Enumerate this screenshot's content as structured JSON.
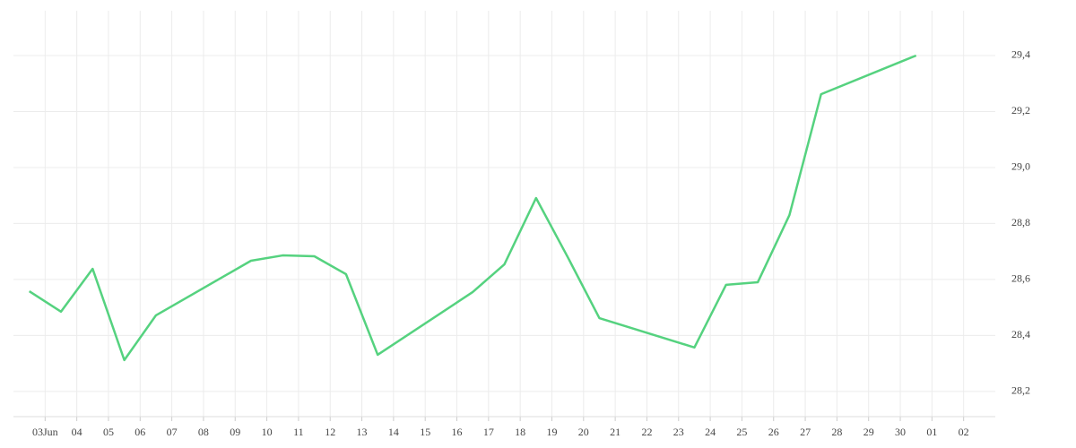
{
  "chart_data": {
    "type": "line",
    "x": [
      -0.5,
      0.5,
      1.5,
      2.5,
      3.5,
      6.5,
      7.5,
      8.5,
      9.5,
      10.5,
      13.5,
      14.5,
      15.5,
      16.5,
      17.5,
      20.5,
      21.5,
      22.5,
      23.5,
      24.5,
      27.5
    ],
    "series": [
      {
        "color": "#55d27f",
        "values": [
          28.558,
          28.485,
          28.638,
          28.312,
          28.472,
          28.667,
          28.686,
          28.683,
          28.619,
          28.331,
          28.555,
          28.654,
          28.891,
          28.68,
          28.462,
          28.357,
          28.581,
          28.59,
          28.83,
          29.262,
          29.4
        ]
      }
    ],
    "xlim": [
      -1,
      30
    ],
    "xticks": [
      {
        "value": 0,
        "label": "03Jun"
      },
      {
        "value": 1,
        "label": "04"
      },
      {
        "value": 2,
        "label": "05"
      },
      {
        "value": 3,
        "label": "06"
      },
      {
        "value": 4,
        "label": "07"
      },
      {
        "value": 5,
        "label": "08"
      },
      {
        "value": 6,
        "label": "09"
      },
      {
        "value": 7,
        "label": "10"
      },
      {
        "value": 8,
        "label": "11"
      },
      {
        "value": 9,
        "label": "12"
      },
      {
        "value": 10,
        "label": "13"
      },
      {
        "value": 11,
        "label": "14"
      },
      {
        "value": 12,
        "label": "15"
      },
      {
        "value": 13,
        "label": "16"
      },
      {
        "value": 14,
        "label": "17"
      },
      {
        "value": 15,
        "label": "18"
      },
      {
        "value": 16,
        "label": "19"
      },
      {
        "value": 17,
        "label": "20"
      },
      {
        "value": 18,
        "label": "21"
      },
      {
        "value": 19,
        "label": "22"
      },
      {
        "value": 20,
        "label": "23"
      },
      {
        "value": 21,
        "label": "24"
      },
      {
        "value": 22,
        "label": "25"
      },
      {
        "value": 23,
        "label": "26"
      },
      {
        "value": 24,
        "label": "27"
      },
      {
        "value": 25,
        "label": "28"
      },
      {
        "value": 26,
        "label": "29"
      },
      {
        "value": 27,
        "label": "30"
      },
      {
        "value": 28,
        "label": "01"
      },
      {
        "value": 29,
        "label": "02"
      }
    ],
    "ylim": [
      28.11,
      29.56
    ],
    "yticks": [
      {
        "value": 28.2,
        "label": "28,2"
      },
      {
        "value": 28.4,
        "label": "28,4"
      },
      {
        "value": 28.6,
        "label": "28,6"
      },
      {
        "value": 28.8,
        "label": "28,8"
      },
      {
        "value": 29.0,
        "label": "29,0"
      },
      {
        "value": 29.2,
        "label": "29,2"
      },
      {
        "value": 29.4,
        "label": "29,4"
      }
    ],
    "grid": true,
    "y_axis_side": "right"
  }
}
